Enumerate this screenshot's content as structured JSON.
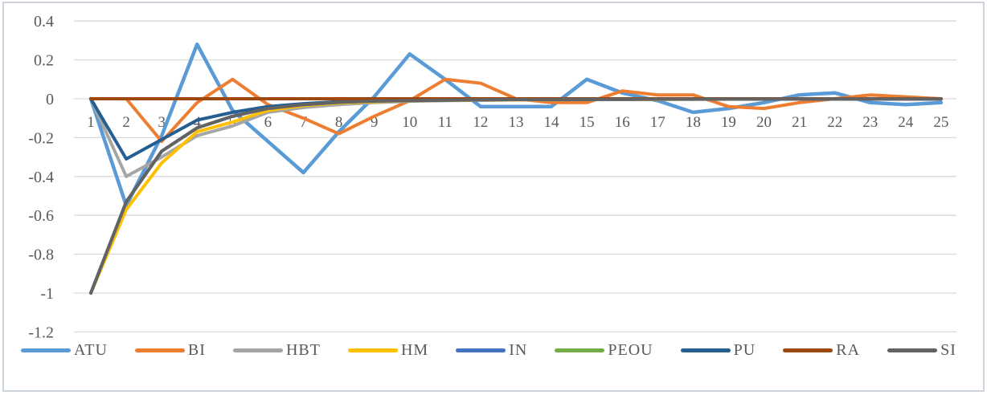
{
  "chart_data": {
    "type": "line",
    "title": "",
    "xlabel": "",
    "ylabel": "",
    "x": [
      1,
      2,
      3,
      4,
      5,
      6,
      7,
      8,
      9,
      10,
      11,
      12,
      13,
      14,
      15,
      16,
      17,
      18,
      19,
      20,
      21,
      22,
      23,
      24,
      25
    ],
    "y_ticks": [
      0.4,
      0.2,
      0,
      -0.2,
      -0.4,
      -0.6,
      -0.8,
      -1,
      -1.2
    ],
    "y_tick_labels": [
      "0.4",
      "0.2",
      "0",
      "-0.2",
      "-0.4",
      "-0.6",
      "-0.8",
      "-1",
      "-1.2"
    ],
    "ylim": [
      -1.3,
      0.45
    ],
    "grid": true,
    "legend_position": "bottom",
    "gridline_color": "#d9d9d9",
    "axis_label_color": "#595959",
    "series": [
      {
        "name": "ATU",
        "color": "#5B9BD5",
        "width": 4.5,
        "values": [
          0,
          -0.55,
          -0.19,
          0.28,
          -0.06,
          -0.22,
          -0.38,
          -0.17,
          0.01,
          0.23,
          0.1,
          -0.04,
          -0.04,
          -0.04,
          0.1,
          0.03,
          -0.01,
          -0.07,
          -0.05,
          -0.02,
          0.02,
          0.03,
          -0.02,
          -0.03,
          -0.02
        ]
      },
      {
        "name": "BI",
        "color": "#ED7D31",
        "width": 4,
        "values": [
          0,
          0,
          -0.22,
          -0.02,
          0.1,
          -0.03,
          -0.1,
          -0.18,
          -0.09,
          -0.01,
          0.1,
          0.08,
          0,
          -0.02,
          -0.02,
          0.04,
          0.02,
          0.02,
          -0.04,
          -0.05,
          -0.02,
          0,
          0.02,
          0.01,
          0
        ]
      },
      {
        "name": "HBT",
        "color": "#A5A5A5",
        "width": 4,
        "values": [
          0,
          -0.4,
          -0.3,
          -0.19,
          -0.14,
          -0.07,
          -0.045,
          -0.03,
          -0.02,
          -0.013,
          -0.01,
          -0.008,
          -0.006,
          -0.005,
          -0.004,
          -0.004,
          -0.003,
          -0.003,
          -0.002,
          -0.002,
          -0.002,
          -0.002,
          -0.001,
          -0.001,
          -0.001
        ]
      },
      {
        "name": "HM",
        "color": "#FFC000",
        "width": 4,
        "values": [
          -1,
          -0.57,
          -0.33,
          -0.17,
          -0.12,
          -0.06,
          -0.035,
          -0.022,
          -0.015,
          -0.01,
          -0.008,
          -0.006,
          -0.005,
          -0.004,
          -0.004,
          -0.003,
          -0.003,
          -0.002,
          -0.002,
          -0.002,
          -0.002,
          -0.001,
          -0.001,
          -0.001,
          -0.001
        ]
      },
      {
        "name": "IN",
        "color": "#4472C4",
        "width": 4,
        "values": [
          -1,
          -0.53,
          -0.27,
          -0.15,
          -0.09,
          -0.05,
          -0.03,
          -0.018,
          -0.012,
          -0.009,
          -0.007,
          -0.005,
          -0.004,
          -0.004,
          -0.003,
          -0.003,
          -0.002,
          -0.002,
          -0.002,
          -0.002,
          -0.001,
          -0.001,
          -0.001,
          -0.001,
          -0.001
        ]
      },
      {
        "name": "PEOU",
        "color": "#70AD47",
        "width": 4,
        "values": [
          0,
          0,
          0,
          0,
          0,
          0,
          0,
          0,
          0,
          0,
          0,
          0,
          0,
          0,
          0,
          0,
          0,
          0,
          0,
          0,
          0,
          0,
          0,
          0,
          0
        ]
      },
      {
        "name": "PU",
        "color": "#255E91",
        "width": 4,
        "values": [
          0,
          -0.31,
          -0.21,
          -0.11,
          -0.07,
          -0.04,
          -0.025,
          -0.015,
          -0.01,
          -0.008,
          -0.006,
          -0.005,
          -0.004,
          -0.003,
          -0.003,
          -0.002,
          -0.002,
          -0.002,
          -0.001,
          -0.001,
          -0.001,
          -0.001,
          -0.001,
          -0.001,
          -0.001
        ]
      },
      {
        "name": "RA",
        "color": "#9E480E",
        "width": 4,
        "values": [
          0,
          0,
          0,
          0,
          0,
          0,
          0,
          0,
          0,
          0,
          0,
          0,
          0,
          0,
          0,
          0,
          0,
          0,
          0,
          0,
          0,
          0,
          0,
          0,
          0
        ]
      },
      {
        "name": "SI",
        "color": "#636363",
        "width": 4,
        "values": [
          -1,
          -0.53,
          -0.27,
          -0.15,
          -0.09,
          -0.05,
          -0.03,
          -0.018,
          -0.012,
          -0.009,
          -0.007,
          -0.005,
          -0.004,
          -0.004,
          -0.003,
          -0.003,
          -0.002,
          -0.002,
          -0.002,
          -0.002,
          -0.001,
          -0.001,
          -0.001,
          -0.001,
          -0.001
        ]
      }
    ],
    "legend": [
      "ATU",
      "BI",
      "HBT",
      "HM",
      "IN",
      "PEOU",
      "PU",
      "RA",
      "SI"
    ]
  }
}
